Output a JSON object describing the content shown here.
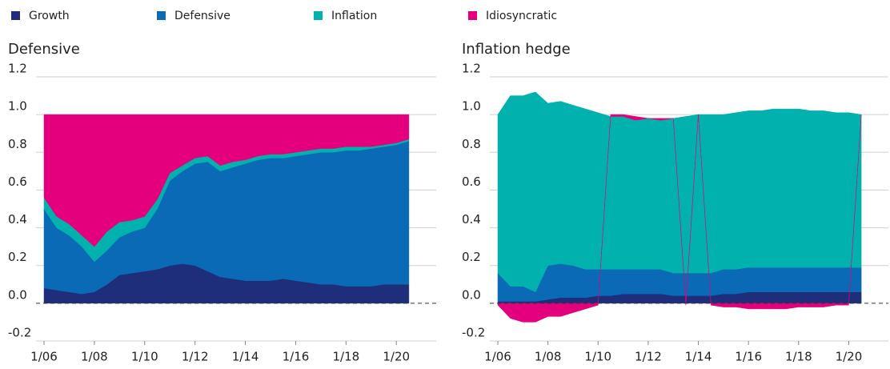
{
  "chart_data": [
    {
      "type": "stacked_area",
      "title": "Defensive",
      "x": [
        "2006-01",
        "2006-07",
        "2007-01",
        "2007-07",
        "2008-01",
        "2008-07",
        "2009-01",
        "2009-07",
        "2010-01",
        "2010-07",
        "2011-01",
        "2011-07",
        "2012-01",
        "2012-07",
        "2013-01",
        "2013-07",
        "2014-01",
        "2014-07",
        "2015-01",
        "2015-07",
        "2016-01",
        "2016-07",
        "2017-01",
        "2017-07",
        "2018-01",
        "2018-07",
        "2019-01",
        "2019-07",
        "2020-01",
        "2020-07"
      ],
      "xlim": [
        "2006-01",
        "2021-08"
      ],
      "xticks": [
        {
          "value": "2006-01",
          "label": "1/06"
        },
        {
          "value": "2008-01",
          "label": "1/08"
        },
        {
          "value": "2010-01",
          "label": "1/10"
        },
        {
          "value": "2012-01",
          "label": "1/12"
        },
        {
          "value": "2014-01",
          "label": "1/14"
        },
        {
          "value": "2016-01",
          "label": "1/16"
        },
        {
          "value": "2018-01",
          "label": "1/18"
        },
        {
          "value": "2020-01",
          "label": "1/20"
        }
      ],
      "ylim": [
        -0.2,
        1.2
      ],
      "yticks": [
        {
          "value": -0.2,
          "label": "-0.2"
        },
        {
          "value": 0,
          "label": "0.0"
        },
        {
          "value": 0.2,
          "label": "0.2"
        },
        {
          "value": 0.4,
          "label": "0.4"
        },
        {
          "value": 0.6,
          "label": "0.6"
        },
        {
          "value": 0.8,
          "label": "0.8"
        },
        {
          "value": 1,
          "label": "1.0"
        },
        {
          "value": 1.2,
          "label": "1.2"
        }
      ],
      "grid": true,
      "series": [
        {
          "name": "Growth",
          "color": "#1f2e7a",
          "values": [
            0.08,
            0.07,
            0.06,
            0.05,
            0.06,
            0.1,
            0.15,
            0.16,
            0.17,
            0.18,
            0.2,
            0.21,
            0.2,
            0.17,
            0.14,
            0.13,
            0.12,
            0.12,
            0.12,
            0.13,
            0.12,
            0.11,
            0.1,
            0.1,
            0.09,
            0.09,
            0.09,
            0.1,
            0.1,
            0.1
          ]
        },
        {
          "name": "Defensive",
          "color": "#0a6ab6",
          "values": [
            0.42,
            0.33,
            0.3,
            0.25,
            0.16,
            0.18,
            0.2,
            0.22,
            0.23,
            0.32,
            0.45,
            0.49,
            0.54,
            0.58,
            0.56,
            0.59,
            0.62,
            0.64,
            0.65,
            0.64,
            0.66,
            0.68,
            0.7,
            0.7,
            0.72,
            0.72,
            0.73,
            0.73,
            0.74,
            0.76
          ]
        },
        {
          "name": "Inflation",
          "color": "#00b1ad",
          "values": [
            0.06,
            0.06,
            0.06,
            0.06,
            0.08,
            0.1,
            0.08,
            0.06,
            0.06,
            0.05,
            0.04,
            0.03,
            0.03,
            0.03,
            0.03,
            0.03,
            0.02,
            0.02,
            0.02,
            0.02,
            0.02,
            0.02,
            0.02,
            0.02,
            0.02,
            0.02,
            0.01,
            0.01,
            0.01,
            0.01
          ]
        },
        {
          "name": "Idiosyncratic",
          "color": "#e4007c",
          "values": [
            0.44,
            0.54,
            0.58,
            0.64,
            0.7,
            0.62,
            0.57,
            0.56,
            0.54,
            0.45,
            0.31,
            0.27,
            0.23,
            0.22,
            0.27,
            0.25,
            0.24,
            0.22,
            0.21,
            0.21,
            0.2,
            0.19,
            0.18,
            0.18,
            0.17,
            0.17,
            0.17,
            0.16,
            0.15,
            0.13
          ]
        }
      ]
    },
    {
      "type": "stacked_area",
      "title": "Inflation hedge",
      "x": [
        "2006-01",
        "2006-07",
        "2007-01",
        "2007-07",
        "2008-01",
        "2008-07",
        "2009-01",
        "2009-07",
        "2010-01",
        "2010-07",
        "2011-01",
        "2011-07",
        "2012-01",
        "2012-07",
        "2013-01",
        "2013-07",
        "2014-01",
        "2014-07",
        "2015-01",
        "2015-07",
        "2016-01",
        "2016-07",
        "2017-01",
        "2017-07",
        "2018-01",
        "2018-07",
        "2019-01",
        "2019-07",
        "2020-01",
        "2020-07"
      ],
      "xlim": [
        "2006-01",
        "2021-08"
      ],
      "xticks": [
        {
          "value": "2006-01",
          "label": "1/06"
        },
        {
          "value": "2008-01",
          "label": "1/08"
        },
        {
          "value": "2010-01",
          "label": "1/10"
        },
        {
          "value": "2012-01",
          "label": "1/12"
        },
        {
          "value": "2014-01",
          "label": "1/14"
        },
        {
          "value": "2016-01",
          "label": "1/16"
        },
        {
          "value": "2018-01",
          "label": "1/18"
        },
        {
          "value": "2020-01",
          "label": "1/20"
        }
      ],
      "ylim": [
        -0.2,
        1.2
      ],
      "yticks": [
        {
          "value": -0.2,
          "label": "-0.2"
        },
        {
          "value": 0,
          "label": "0.0"
        },
        {
          "value": 0.2,
          "label": "0.2"
        },
        {
          "value": 0.4,
          "label": "0.4"
        },
        {
          "value": 0.6,
          "label": "0.6"
        },
        {
          "value": 0.8,
          "label": "0.8"
        },
        {
          "value": 1,
          "label": "1.0"
        },
        {
          "value": 1.2,
          "label": "1.2"
        }
      ],
      "grid": true,
      "series": [
        {
          "name": "Growth",
          "color": "#1f2e7a",
          "values": [
            0.01,
            0.01,
            0.01,
            0.01,
            0.02,
            0.03,
            0.03,
            0.03,
            0.04,
            0.04,
            0.05,
            0.05,
            0.05,
            0.05,
            0.04,
            0.04,
            0.04,
            0.04,
            0.05,
            0.05,
            0.06,
            0.06,
            0.06,
            0.06,
            0.06,
            0.06,
            0.06,
            0.06,
            0.06,
            0.06
          ]
        },
        {
          "name": "Defensive",
          "color": "#0a6ab6",
          "values": [
            0.15,
            0.08,
            0.08,
            0.05,
            0.18,
            0.18,
            0.17,
            0.15,
            0.14,
            0.14,
            0.13,
            0.13,
            0.13,
            0.13,
            0.12,
            0.12,
            0.12,
            0.12,
            0.13,
            0.13,
            0.13,
            0.13,
            0.13,
            0.13,
            0.13,
            0.13,
            0.13,
            0.13,
            0.13,
            0.13
          ]
        },
        {
          "name": "Inflation",
          "color": "#00b1ad",
          "values": [
            0.84,
            1.01,
            1.01,
            1.06,
            0.86,
            0.86,
            0.85,
            0.85,
            0.83,
            0.81,
            0.81,
            0.79,
            0.8,
            0.79,
            0.82,
            0.83,
            0.84,
            0.84,
            0.82,
            0.83,
            0.83,
            0.83,
            0.84,
            0.84,
            0.84,
            0.83,
            0.83,
            0.82,
            0.82,
            0.81
          ]
        },
        {
          "name": "Idiosyncratic",
          "color": "#e4007c",
          "values": [
            -0.01,
            -0.08,
            -0.1,
            -0.1,
            -0.07,
            -0.07,
            -0.05,
            -0.03,
            -0.01,
            0.01,
            0.01,
            0.02,
            0.0,
            0.01,
            0.0,
            -0.01,
            0.0,
            -0.01,
            -0.02,
            -0.02,
            -0.03,
            -0.03,
            -0.03,
            -0.03,
            -0.02,
            -0.02,
            -0.02,
            -0.01,
            -0.01,
            0.0
          ]
        }
      ]
    }
  ]
}
